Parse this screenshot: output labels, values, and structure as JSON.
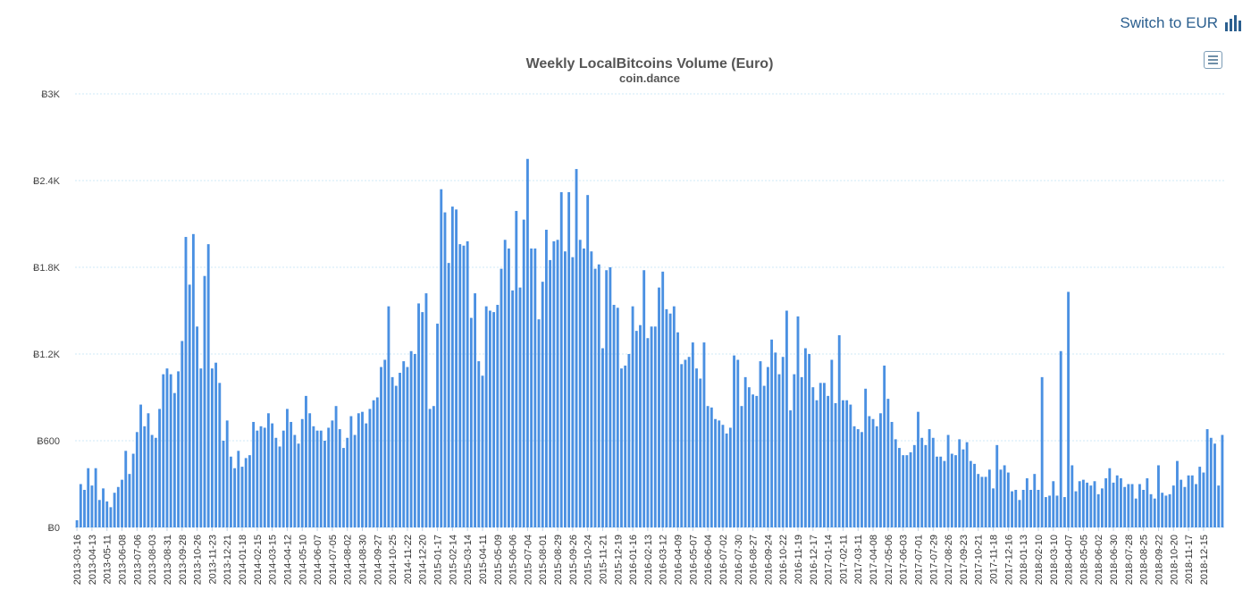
{
  "header": {
    "switch_label": "Switch to EUR"
  },
  "icons": {
    "switch": "bar-chart-icon",
    "menu": "hamburger-menu-icon"
  },
  "colors": {
    "bar": "#4a90e2",
    "link": "#2b5f8f"
  },
  "chart_data": {
    "type": "bar",
    "title": "Weekly LocalBitcoins Volume (Euro)",
    "subtitle": "coin.dance",
    "xlabel": "",
    "ylabel": "",
    "ylim": [
      0,
      3000
    ],
    "yticks": [
      0,
      600,
      1200,
      1800,
      2400,
      3000
    ],
    "ytick_labels": [
      "Ƀ0",
      "Ƀ600",
      "Ƀ1.2K",
      "Ƀ1.8K",
      "Ƀ2.4K",
      "Ƀ3K"
    ],
    "grid": true,
    "legend": "none",
    "start_date": "2013-03-16",
    "x_labels": [
      "2013-03-16",
      "2013-04-13",
      "2013-05-11",
      "2013-06-08",
      "2013-07-06",
      "2013-08-03",
      "2013-08-31",
      "2013-09-28",
      "2013-10-26",
      "2013-11-23",
      "2013-12-21",
      "2014-01-18",
      "2014-02-15",
      "2014-03-15",
      "2014-04-12",
      "2014-05-10",
      "2014-06-07",
      "2014-07-05",
      "2014-08-02",
      "2014-08-30",
      "2014-09-27",
      "2014-10-25",
      "2014-11-22",
      "2014-12-20",
      "2015-01-17",
      "2015-02-14",
      "2015-03-14",
      "2015-04-11",
      "2015-05-09",
      "2015-06-06",
      "2015-07-04",
      "2015-08-01",
      "2015-08-29",
      "2015-09-26",
      "2015-10-24",
      "2015-11-21",
      "2015-12-19",
      "2016-01-16",
      "2016-02-13",
      "2016-03-12",
      "2016-04-09",
      "2016-05-07",
      "2016-06-04",
      "2016-07-02",
      "2016-07-30",
      "2016-08-27",
      "2016-09-24",
      "2016-10-22",
      "2016-11-19",
      "2016-12-17",
      "2017-01-14",
      "2017-02-11",
      "2017-03-11",
      "2017-04-08",
      "2017-05-06",
      "2017-06-03",
      "2017-07-01",
      "2017-07-29",
      "2017-08-26",
      "2017-09-23",
      "2017-10-21",
      "2017-11-18",
      "2017-12-16",
      "2018-01-13",
      "2018-02-10",
      "2018-03-10",
      "2018-04-07",
      "2018-05-05",
      "2018-06-02",
      "2018-06-30",
      "2018-07-28",
      "2018-08-25",
      "2018-09-22",
      "2018-10-20",
      "2018-11-17",
      "2018-12-15"
    ],
    "values": [
      50,
      300,
      260,
      410,
      290,
      410,
      190,
      270,
      180,
      140,
      240,
      280,
      330,
      530,
      370,
      510,
      660,
      850,
      700,
      790,
      640,
      620,
      820,
      1060,
      1100,
      1060,
      930,
      1080,
      1290,
      2010,
      1680,
      2030,
      1390,
      1100,
      1740,
      1960,
      1100,
      1140,
      1000,
      600,
      740,
      490,
      410,
      530,
      420,
      480,
      500,
      730,
      670,
      700,
      690,
      790,
      720,
      620,
      560,
      670,
      820,
      730,
      640,
      580,
      750,
      910,
      790,
      700,
      670,
      670,
      600,
      690,
      740,
      840,
      680,
      550,
      620,
      770,
      640,
      790,
      800,
      720,
      820,
      880,
      900,
      1110,
      1160,
      1530,
      1040,
      980,
      1070,
      1150,
      1110,
      1220,
      1200,
      1550,
      1490,
      1620,
      820,
      840,
      1410,
      2340,
      2180,
      1830,
      2220,
      2200,
      1960,
      1950,
      1980,
      1450,
      1620,
      1150,
      1050,
      1530,
      1500,
      1490,
      1540,
      1790,
      1990,
      1930,
      1640,
      2190,
      1660,
      2130,
      2550,
      1930,
      1930,
      1440,
      1700,
      2060,
      1850,
      1980,
      1990,
      2320,
      1910,
      2320,
      1870,
      2480,
      1990,
      1930,
      2300,
      1910,
      1790,
      1820,
      1240,
      1780,
      1800,
      1540,
      1520,
      1100,
      1120,
      1200,
      1530,
      1360,
      1400,
      1780,
      1310,
      1390,
      1390,
      1660,
      1770,
      1510,
      1480,
      1530,
      1350,
      1130,
      1160,
      1180,
      1280,
      1100,
      1030,
      1280,
      840,
      830,
      750,
      740,
      710,
      650,
      690,
      1190,
      1160,
      840,
      1040,
      970,
      920,
      910,
      1150,
      980,
      1110,
      1300,
      1210,
      1060,
      1180,
      1500,
      810,
      1060,
      1460,
      1040,
      1240,
      1200,
      970,
      880,
      1000,
      1000,
      910,
      1160,
      860,
      1330,
      880,
      880,
      850,
      700,
      680,
      660,
      960,
      770,
      750,
      700,
      790,
      1120,
      890,
      730,
      610,
      550,
      500,
      500,
      520,
      570,
      800,
      620,
      570,
      680,
      620,
      490,
      490,
      460,
      640,
      510,
      500,
      610,
      540,
      590,
      460,
      440,
      370,
      350,
      350,
      400,
      270,
      570,
      400,
      430,
      380,
      250,
      260,
      190,
      260,
      340,
      260,
      370,
      260,
      1040,
      210,
      220,
      320,
      220,
      1220,
      210,
      1630,
      430,
      250,
      320,
      330,
      310,
      290,
      320,
      230,
      270,
      340,
      410,
      310,
      360,
      340,
      280,
      300,
      300,
      200,
      300,
      260,
      340,
      230,
      200,
      430,
      240,
      220,
      230,
      290,
      460,
      330,
      280,
      360,
      360,
      300,
      420,
      380,
      680,
      620,
      580,
      290,
      640
    ]
  }
}
